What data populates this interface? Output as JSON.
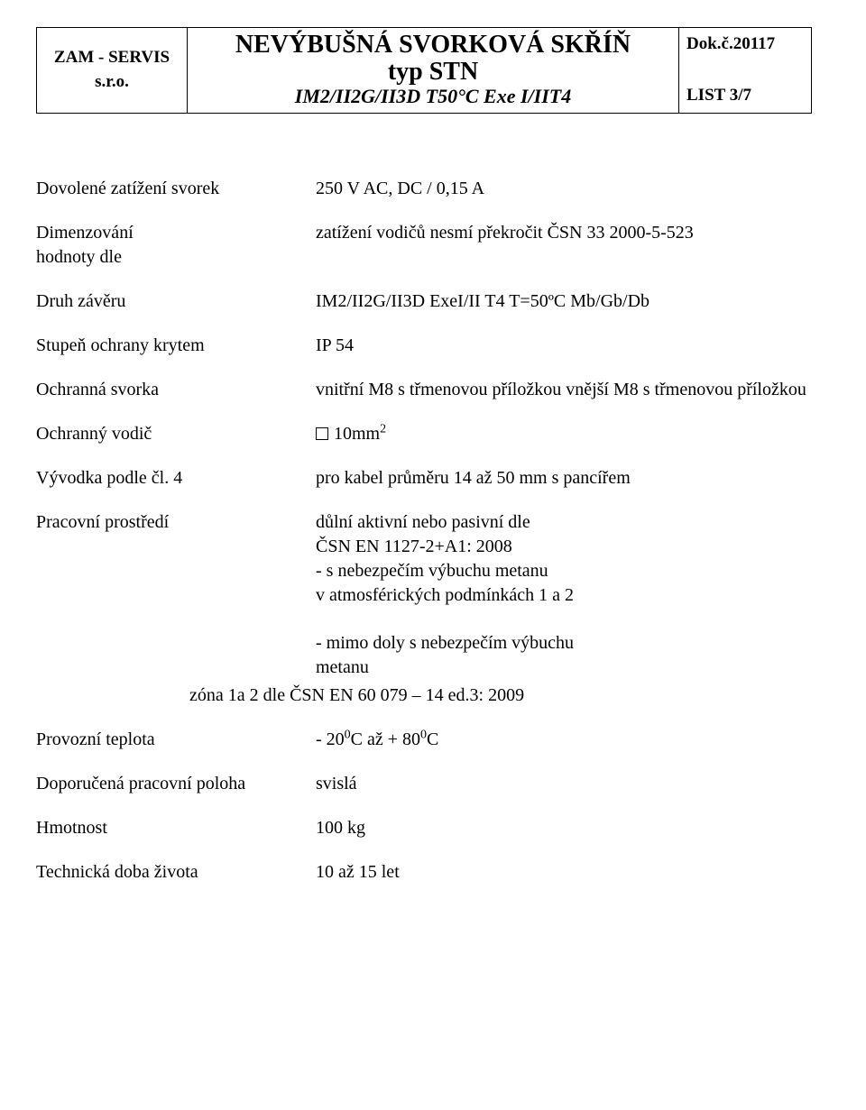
{
  "header": {
    "company_line1": "ZAM - SERVIS",
    "company_line2": "s.r.o.",
    "title_line1": "NEVÝBUŠNÁ SVORKOVÁ SKŘÍŇ",
    "title_line2": "typ STN",
    "title_line3": "IM2/II2G/II3D T50°C Exe I/IIT4",
    "doc_no": "Dok.č.20117",
    "list": "LIST 3/7"
  },
  "rows": {
    "load": {
      "label": "Dovolené zatížení svorek",
      "value": "250 V AC, DC /  0,15 A"
    },
    "dim": {
      "label1": "Dimenzování",
      "label2": "hodnoty dle",
      "value1": "zatížení vodičů nesmí překročit",
      "value2": "ČSN 33 2000-5-523"
    },
    "closure": {
      "label": "Druh závěru",
      "value": "IM2/II2G/II3D ExeI/II T4 T=50ºC Mb/Gb/Db"
    },
    "ip": {
      "label": "Stupeň ochrany krytem",
      "value": "IP 54"
    },
    "terminal": {
      "label": "Ochranná svorka",
      "value1": "vnitřní  M8  s třmenovou příložkou",
      "value2": "vnější   M8  s třmenovou příložkou"
    },
    "conductor": {
      "label": "Ochranný vodič",
      "value_num": "10mm",
      "value_exp": "2"
    },
    "gland": {
      "label": "Vývodka podle čl. 4",
      "value1": "pro kabel průměru 14 až 50 mm s",
      "value2": "pancířem"
    },
    "env": {
      "label": "Pracovní prostředí",
      "v1": "důlní aktivní nebo pasivní dle",
      "v2": "ČSN EN 1127-2+A1: 2008",
      "v3": "- s nebezpečím výbuchu metanu",
      "v4": "v atmosférických podmínkách 1 a 2",
      "v5": "- mimo doly s nebezpečím výbuchu",
      "v6": "metanu",
      "zone": "zóna 1a 2 dle ČSN EN 60 079 – 14 ed.3: 2009"
    },
    "temp": {
      "label": "Provozní teplota",
      "value_prefix": "- 20",
      "value_mid": "C až + 80",
      "value_suffix": "C",
      "exp": "0"
    },
    "position": {
      "label": "Doporučená pracovní poloha",
      "value": "svislá"
    },
    "mass": {
      "label": "Hmotnost",
      "value": "100 kg"
    },
    "life": {
      "label": "Technická doba života",
      "value": "10 až 15 let"
    }
  }
}
